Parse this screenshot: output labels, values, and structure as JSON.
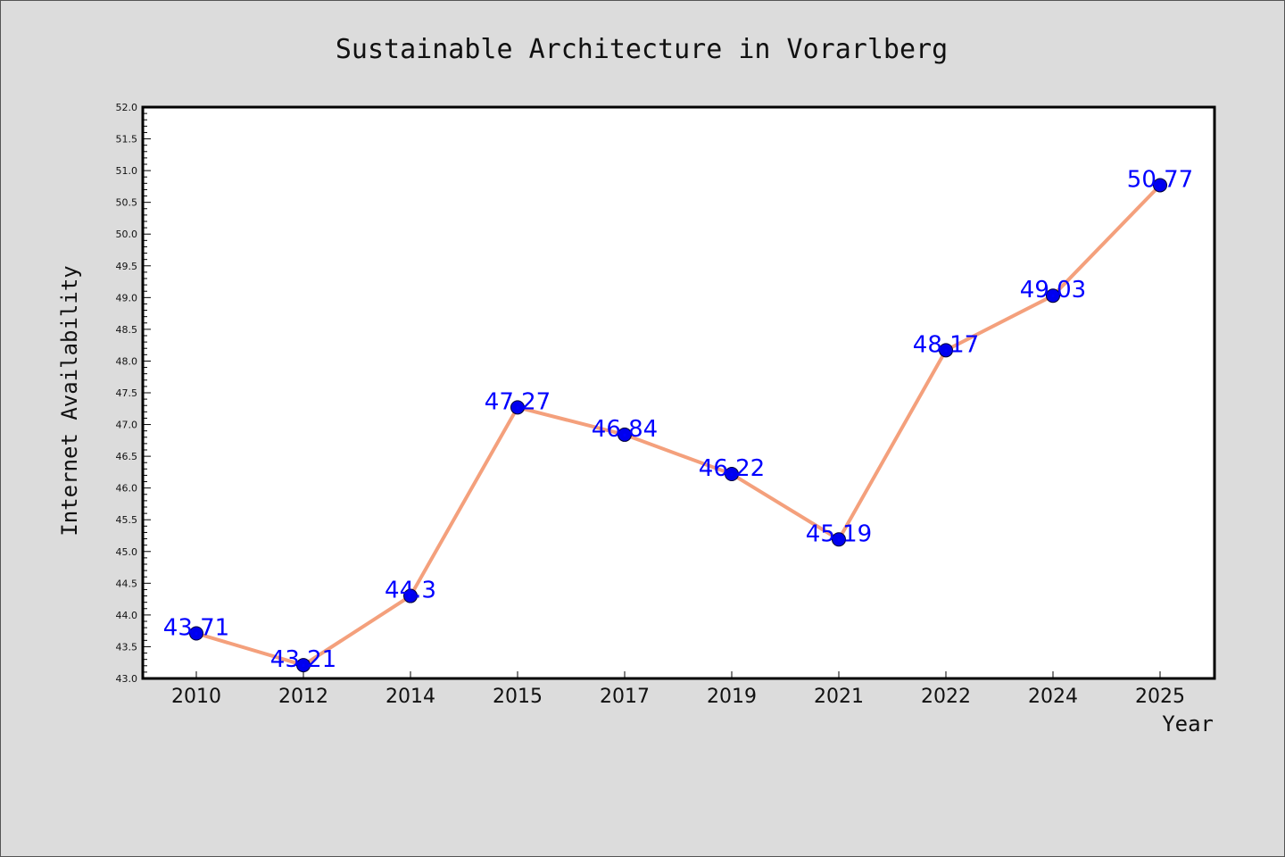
{
  "chart_data": {
    "type": "line",
    "title": "Sustainable Architecture in Vorarlberg",
    "xlabel": "Year",
    "ylabel": "Internet Availability",
    "categories": [
      "2010",
      "2012",
      "2014",
      "2015",
      "2017",
      "2019",
      "2021",
      "2022",
      "2024",
      "2025"
    ],
    "series": [
      {
        "values": [
          43.71,
          43.21,
          44.3,
          47.27,
          46.84,
          46.22,
          45.19,
          48.17,
          49.03,
          50.77
        ],
        "data_labels": [
          "43.71",
          "43.21",
          "44.3",
          "47.27",
          "46.84",
          "46.22",
          "45.19",
          "48.17",
          "49.03",
          "50.77"
        ]
      }
    ],
    "ylim": [
      43.0,
      52.0
    ],
    "yticks": [
      "43.0",
      "43.5",
      "44.0",
      "44.5",
      "45.0",
      "45.5",
      "46.0",
      "46.5",
      "47.0",
      "47.5",
      "48.0",
      "48.5",
      "49.0",
      "49.5",
      "50.0",
      "50.5",
      "51.0",
      "51.5",
      "52.0"
    ],
    "grid": false,
    "legend": "none",
    "colors": {
      "background": "#dcdcdc",
      "plot_background": "#ffffff",
      "line": "#f4a07c",
      "marker_fill": "#0000ee",
      "marker_stroke": "#000033",
      "data_label": "#0000ff"
    }
  }
}
